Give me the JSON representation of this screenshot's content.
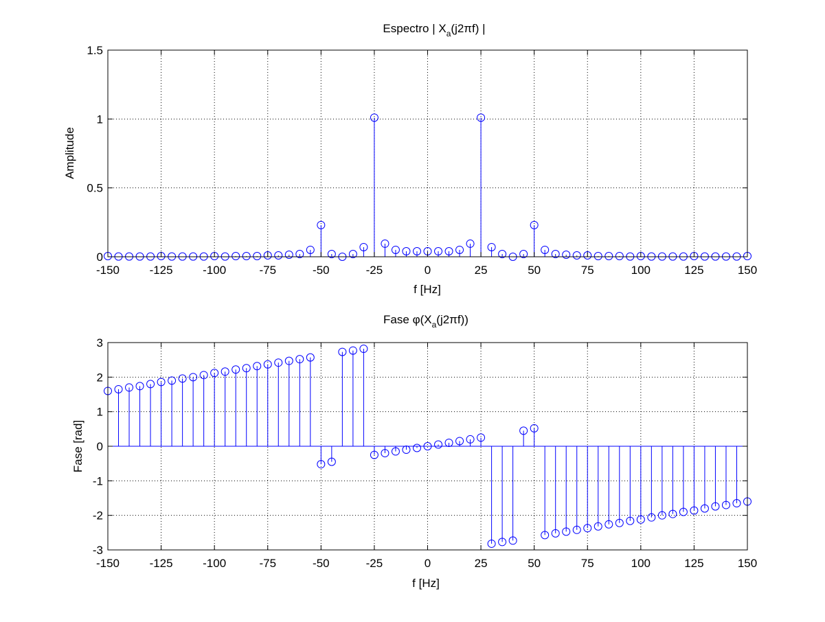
{
  "chart_data": [
    {
      "type": "stem",
      "title": {
        "pre": "Espectro | X",
        "sub": "a",
        "post": "(j2πf) |"
      },
      "xlabel": "f [Hz]",
      "ylabel": "Amplitude",
      "xlim": [
        -150,
        150
      ],
      "ylim": [
        0,
        1.5
      ],
      "grid": true,
      "color": "#0000ff",
      "xticks": [
        -150,
        -125,
        -100,
        -75,
        -50,
        -25,
        0,
        25,
        50,
        75,
        100,
        125,
        150
      ],
      "xtick_labels": [
        "-150",
        "-125",
        "-100",
        "-75",
        "-50",
        "-25",
        "0",
        "25",
        "50",
        "75",
        "100",
        "125",
        "150"
      ],
      "yticks": [
        0,
        0.5,
        1,
        1.5
      ],
      "ytick_labels": [
        "0",
        "0.5",
        "1",
        "1.5"
      ],
      "x": [
        -150,
        -145,
        -140,
        -135,
        -130,
        -125,
        -120,
        -115,
        -110,
        -105,
        -100,
        -95,
        -90,
        -85,
        -80,
        -75,
        -70,
        -65,
        -60,
        -55,
        -50,
        -45,
        -40,
        -35,
        -30,
        -25,
        -20,
        -15,
        -10,
        -5,
        0,
        5,
        10,
        15,
        20,
        25,
        30,
        35,
        40,
        45,
        50,
        55,
        60,
        65,
        70,
        75,
        80,
        85,
        90,
        95,
        100,
        105,
        110,
        115,
        120,
        125,
        130,
        135,
        140,
        145,
        150
      ],
      "values": [
        0.005,
        0.002,
        0.002,
        0.002,
        0.002,
        0.005,
        0.002,
        0.002,
        0.002,
        0.002,
        0.005,
        0.002,
        0.005,
        0.005,
        0.005,
        0.01,
        0.01,
        0.015,
        0.02,
        0.05,
        0.23,
        0.02,
        0.0,
        0.02,
        0.07,
        1.01,
        0.095,
        0.05,
        0.04,
        0.04,
        0.04,
        0.04,
        0.04,
        0.05,
        0.095,
        1.01,
        0.07,
        0.02,
        0.0,
        0.02,
        0.23,
        0.05,
        0.02,
        0.015,
        0.01,
        0.01,
        0.005,
        0.005,
        0.005,
        0.002,
        0.005,
        0.002,
        0.002,
        0.002,
        0.002,
        0.005,
        0.002,
        0.002,
        0.002,
        0.002,
        0.005
      ]
    },
    {
      "type": "stem",
      "title": {
        "pre": "Fase φ(X",
        "sub": "a",
        "post": "(j2πf))"
      },
      "xlabel": "f [Hz]",
      "ylabel": "Fase [rad]",
      "xlim": [
        -150,
        150
      ],
      "ylim": [
        -3,
        3
      ],
      "grid": true,
      "color": "#0000ff",
      "xticks": [
        -150,
        -125,
        -100,
        -75,
        -50,
        -25,
        0,
        25,
        50,
        75,
        100,
        125,
        150
      ],
      "xtick_labels": [
        "-150",
        "-125",
        "-100",
        "-75",
        "-50",
        "-25",
        "0",
        "25",
        "50",
        "75",
        "100",
        "125",
        "150"
      ],
      "yticks": [
        -3,
        -2,
        -1,
        0,
        1,
        2,
        3
      ],
      "ytick_labels": [
        "-3",
        "-2",
        "-1",
        "0",
        "1",
        "2",
        "3"
      ],
      "x": [
        -150,
        -145,
        -140,
        -135,
        -130,
        -125,
        -120,
        -115,
        -110,
        -105,
        -100,
        -95,
        -90,
        -85,
        -80,
        -75,
        -70,
        -65,
        -60,
        -55,
        -50,
        -45,
        -40,
        -35,
        -30,
        -25,
        -20,
        -15,
        -10,
        -5,
        0,
        5,
        10,
        15,
        20,
        25,
        30,
        35,
        40,
        45,
        50,
        55,
        60,
        65,
        70,
        75,
        80,
        85,
        90,
        95,
        100,
        105,
        110,
        115,
        120,
        125,
        130,
        135,
        140,
        145,
        150
      ],
      "values": [
        1.6,
        1.65,
        1.7,
        1.74,
        1.8,
        1.86,
        1.9,
        1.96,
        2.0,
        2.06,
        2.12,
        2.16,
        2.22,
        2.26,
        2.32,
        2.37,
        2.42,
        2.47,
        2.52,
        2.57,
        -0.52,
        -0.45,
        2.73,
        2.77,
        2.82,
        -0.25,
        -0.2,
        -0.15,
        -0.1,
        -0.05,
        0.0,
        0.05,
        0.1,
        0.15,
        0.2,
        0.25,
        -2.82,
        -2.77,
        -2.73,
        0.45,
        0.52,
        -2.57,
        -2.52,
        -2.47,
        -2.42,
        -2.37,
        -2.32,
        -2.26,
        -2.22,
        -2.16,
        -2.12,
        -2.06,
        -2.0,
        -1.96,
        -1.9,
        -1.86,
        -1.8,
        -1.74,
        -1.7,
        -1.65,
        -1.6
      ]
    }
  ]
}
